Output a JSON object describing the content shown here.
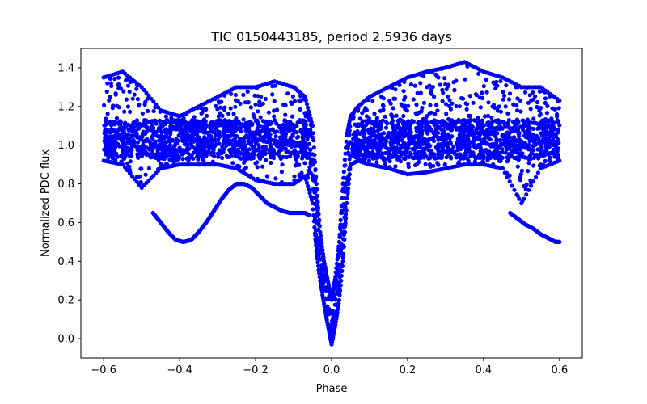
{
  "chart_data": {
    "type": "scatter",
    "title": "TIC 0150443185, period 2.5936 days",
    "xlabel": "Phase",
    "ylabel": "Normalized PDC flux",
    "xlim": [
      -0.66,
      0.66
    ],
    "ylim": [
      -0.1,
      1.5
    ],
    "xticks": [
      -0.6,
      -0.4,
      -0.2,
      0.0,
      0.2,
      0.4,
      0.6
    ],
    "xtick_labels": [
      "−0.6",
      "−0.4",
      "−0.2",
      "0.0",
      "0.2",
      "0.4",
      "0.6"
    ],
    "yticks": [
      0.0,
      0.2,
      0.4,
      0.6,
      0.8,
      1.0,
      1.2,
      1.4
    ],
    "ytick_labels": [
      "0.0",
      "0.2",
      "0.4",
      "0.6",
      "0.8",
      "1.0",
      "1.2",
      "1.4"
    ],
    "grid": false,
    "legend": "none",
    "marker_color": "#0000ff",
    "series": [
      {
        "label": "lower envelope",
        "x": [
          -0.6,
          -0.55,
          -0.5,
          -0.45,
          -0.4,
          -0.35,
          -0.3,
          -0.25,
          -0.2,
          -0.15,
          -0.1,
          -0.07,
          -0.05,
          -0.04,
          -0.03,
          -0.02,
          -0.01,
          0.0,
          0.01,
          0.02,
          0.03,
          0.04,
          0.05,
          0.07,
          0.1,
          0.15,
          0.2,
          0.25,
          0.3,
          0.35,
          0.4,
          0.45,
          0.5,
          0.55,
          0.6
        ],
        "y": [
          0.92,
          0.9,
          0.78,
          0.88,
          0.9,
          0.9,
          0.9,
          0.88,
          0.82,
          0.8,
          0.8,
          0.84,
          0.7,
          0.45,
          0.3,
          0.18,
          0.07,
          -0.03,
          0.07,
          0.2,
          0.4,
          0.7,
          0.9,
          0.92,
          0.9,
          0.88,
          0.85,
          0.86,
          0.88,
          0.9,
          0.9,
          0.88,
          0.7,
          0.88,
          0.92
        ]
      },
      {
        "label": "upper envelope",
        "x": [
          -0.6,
          -0.55,
          -0.5,
          -0.45,
          -0.4,
          -0.35,
          -0.3,
          -0.25,
          -0.2,
          -0.15,
          -0.1,
          -0.07,
          -0.05,
          -0.04,
          -0.03,
          -0.02,
          -0.01,
          0.0,
          0.01,
          0.02,
          0.03,
          0.04,
          0.05,
          0.07,
          0.1,
          0.15,
          0.2,
          0.25,
          0.3,
          0.35,
          0.4,
          0.45,
          0.5,
          0.55,
          0.6
        ],
        "y": [
          1.35,
          1.38,
          1.3,
          1.18,
          1.15,
          1.2,
          1.25,
          1.3,
          1.3,
          1.33,
          1.3,
          1.25,
          1.1,
          0.8,
          0.55,
          0.4,
          0.3,
          0.2,
          0.32,
          0.5,
          0.8,
          1.05,
          1.15,
          1.2,
          1.25,
          1.3,
          1.35,
          1.38,
          1.4,
          1.43,
          1.38,
          1.35,
          1.3,
          1.3,
          1.23
        ]
      },
      {
        "label": "low branch left",
        "x": [
          -0.47,
          -0.45,
          -0.43,
          -0.41,
          -0.39,
          -0.37,
          -0.35,
          -0.33,
          -0.31,
          -0.29,
          -0.27,
          -0.25,
          -0.23,
          -0.21,
          -0.19,
          -0.17,
          -0.15,
          -0.13,
          -0.11,
          -0.09,
          -0.07,
          -0.06
        ],
        "y": [
          0.65,
          0.6,
          0.55,
          0.51,
          0.5,
          0.51,
          0.55,
          0.6,
          0.66,
          0.72,
          0.77,
          0.8,
          0.8,
          0.78,
          0.74,
          0.7,
          0.68,
          0.66,
          0.65,
          0.65,
          0.65,
          0.64
        ]
      },
      {
        "label": "low branch right",
        "x": [
          0.47,
          0.49,
          0.51,
          0.53,
          0.55,
          0.57,
          0.59,
          0.6
        ],
        "y": [
          0.65,
          0.62,
          0.59,
          0.57,
          0.54,
          0.52,
          0.5,
          0.5
        ]
      }
    ]
  }
}
